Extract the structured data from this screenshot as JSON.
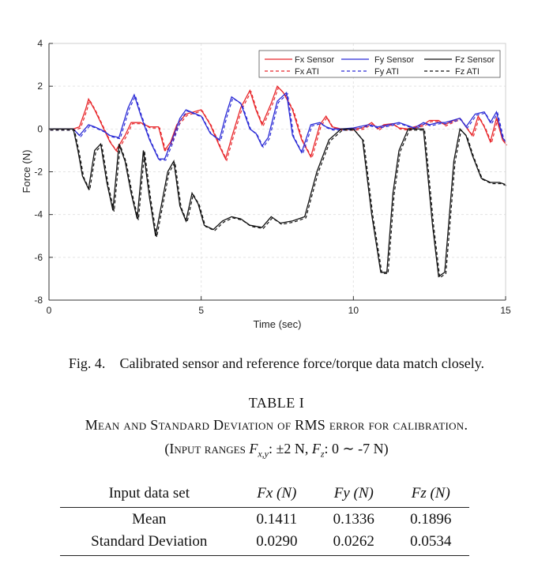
{
  "chart_data": {
    "type": "line",
    "xlabel": "Time (sec)",
    "ylabel": "Force (N)",
    "xlim": [
      0,
      15
    ],
    "ylim": [
      -8,
      4
    ],
    "xticks": [
      0,
      5,
      10,
      15
    ],
    "yticks": [
      4,
      2,
      0,
      -2,
      -4,
      -6,
      -8
    ],
    "grid": true,
    "legend_position": "top-right",
    "series": [
      {
        "name": "Fx Sensor",
        "color": "#e8262a",
        "dash": false,
        "x": [
          0,
          0.8,
          1.0,
          1.2,
          1.3,
          1.5,
          1.8,
          2.0,
          2.2,
          2.5,
          2.7,
          3.0,
          3.3,
          3.6,
          3.8,
          4.0,
          4.2,
          4.5,
          5.0,
          5.3,
          5.6,
          5.8,
          6.0,
          6.3,
          6.6,
          6.8,
          7.0,
          7.3,
          7.5,
          7.7,
          8.0,
          8.3,
          8.6,
          8.9,
          9.1,
          9.3,
          9.6,
          10.0,
          10.3,
          10.6,
          10.8,
          11.0,
          11.3,
          11.5,
          11.8,
          12.0,
          12.3,
          12.5,
          12.8,
          13.0,
          13.3,
          13.5,
          13.7,
          13.9,
          14.1,
          14.3,
          14.5,
          14.7,
          14.9,
          15.0
        ],
        "values": [
          0,
          0,
          0.1,
          0.9,
          1.4,
          0.9,
          0,
          -0.6,
          -1.0,
          -0.3,
          0.3,
          0.3,
          0.1,
          0.1,
          -1.0,
          -0.6,
          0.2,
          0.7,
          0.9,
          0.2,
          -0.8,
          -1.4,
          -0.4,
          1.0,
          1.8,
          0.9,
          0.2,
          1.2,
          2.0,
          1.7,
          0.9,
          -0.5,
          -1.3,
          0.2,
          0.6,
          0.1,
          0,
          0,
          0.05,
          0.3,
          0,
          0.2,
          0.25,
          0.05,
          0,
          0.1,
          0.2,
          0.4,
          0.4,
          0.2,
          0.4,
          0.5,
          0.1,
          -0.3,
          0.6,
          0.1,
          -0.6,
          0.5,
          -0.5,
          -0.7
        ]
      },
      {
        "name": "Fy Sensor",
        "color": "#2b2bd6",
        "dash": false,
        "x": [
          0,
          0.8,
          1.0,
          1.3,
          1.5,
          1.8,
          2.0,
          2.3,
          2.6,
          2.8,
          3.0,
          3.3,
          3.6,
          3.8,
          4.0,
          4.3,
          4.5,
          5.0,
          5.3,
          5.6,
          5.8,
          6.0,
          6.3,
          6.6,
          6.8,
          7.0,
          7.2,
          7.5,
          7.8,
          8.0,
          8.3,
          8.6,
          8.9,
          9.1,
          9.3,
          9.6,
          10.0,
          10.5,
          10.8,
          11.0,
          11.5,
          12.0,
          12.3,
          12.5,
          12.8,
          13.0,
          13.5,
          13.7,
          14.0,
          14.3,
          14.5,
          14.7,
          14.9,
          15.0
        ],
        "values": [
          0,
          0,
          -0.3,
          0.2,
          0.1,
          -0.1,
          -0.3,
          -0.4,
          1.0,
          1.6,
          0.7,
          -0.5,
          -1.4,
          -1.4,
          -0.7,
          0.5,
          0.9,
          0.6,
          -0.2,
          -0.5,
          0.6,
          1.5,
          1.2,
          0,
          -0.2,
          -0.8,
          -0.4,
          1.3,
          1.7,
          -0.3,
          -1.1,
          0.2,
          0.3,
          0.1,
          0,
          0,
          0.05,
          0.2,
          0.1,
          0.15,
          0.3,
          0.05,
          0.3,
          0.2,
          0.3,
          0.3,
          0.5,
          0.1,
          0.7,
          0.8,
          0.3,
          0.8,
          -0.4,
          -0.6
        ]
      },
      {
        "name": "Fz Sensor",
        "color": "#111111",
        "dash": false,
        "x": [
          0,
          0.8,
          0.95,
          1.1,
          1.3,
          1.5,
          1.7,
          1.9,
          2.1,
          2.3,
          2.5,
          2.7,
          2.9,
          3.1,
          3.3,
          3.5,
          3.7,
          3.9,
          4.1,
          4.3,
          4.5,
          4.7,
          4.9,
          5.1,
          5.4,
          5.7,
          6.0,
          6.3,
          6.6,
          7.0,
          7.3,
          7.6,
          8.0,
          8.4,
          8.8,
          9.2,
          9.6,
          10.0,
          10.3,
          10.6,
          10.9,
          11.1,
          11.3,
          11.5,
          11.8,
          12.0,
          12.3,
          12.6,
          12.8,
          13.0,
          13.3,
          13.5,
          13.7,
          13.9,
          14.2,
          14.5,
          14.8,
          15.0
        ],
        "values": [
          0,
          0,
          -1.0,
          -2.2,
          -2.8,
          -1.0,
          -0.7,
          -2.5,
          -3.8,
          -0.7,
          -1.5,
          -3.0,
          -4.2,
          -1.0,
          -3.2,
          -5.0,
          -3.5,
          -2.0,
          -1.5,
          -3.6,
          -4.3,
          -3.0,
          -3.5,
          -4.5,
          -4.7,
          -4.3,
          -4.1,
          -4.2,
          -4.5,
          -4.6,
          -4.1,
          -4.4,
          -4.3,
          -4.1,
          -2.0,
          -0.5,
          0,
          0,
          -0.5,
          -4.0,
          -6.7,
          -6.7,
          -3.0,
          -1.0,
          0,
          0,
          0,
          -4.5,
          -6.9,
          -6.7,
          -1.5,
          0,
          -0.3,
          -1.2,
          -2.3,
          -2.5,
          -2.5,
          -2.6
        ]
      }
    ],
    "reference_series": [
      {
        "name": "Fx ATI",
        "color": "#e8262a",
        "dash": true,
        "follows": "Fx Sensor"
      },
      {
        "name": "Fy ATI",
        "color": "#2b2bd6",
        "dash": true,
        "follows": "Fy Sensor"
      },
      {
        "name": "Fz ATI",
        "color": "#111111",
        "dash": true,
        "follows": "Fz Sensor"
      }
    ]
  },
  "caption": {
    "label": "Fig. 4.",
    "text": "Calibrated sensor and reference force/torque data match closely."
  },
  "table": {
    "number": "TABLE I",
    "title": "Mean and Standard Deviation of RMS error for calibration.",
    "subtitle_prefix": "(Input ranges ",
    "subtitle_fxy": "F",
    "subtitle_fxy_sub": "x,y",
    "subtitle_mid": ": ±2 N, ",
    "subtitle_fz": "F",
    "subtitle_fz_sub": "z",
    "subtitle_end": ": 0 ∼ -7 N)",
    "headers": [
      "Input data set",
      "Fx (N)",
      "Fy (N)",
      "Fz (N)"
    ],
    "rows": [
      {
        "label": "Mean",
        "fx": "0.1411",
        "fy": "0.1336",
        "fz": "0.1896"
      },
      {
        "label": "Standard Deviation",
        "fx": "0.0290",
        "fy": "0.0262",
        "fz": "0.0534"
      }
    ]
  }
}
